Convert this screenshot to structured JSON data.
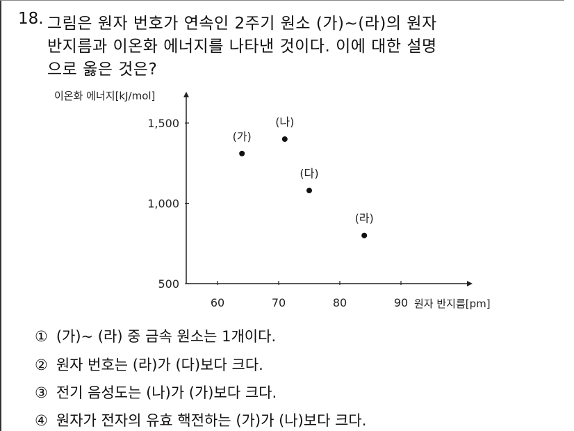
{
  "question": {
    "number": "18.",
    "lines": [
      "그림은 원자 번호가 연속인 2주기 원소 (가)~(라)의 원자",
      "반지름과 이온화 에너지를 나타낸 것이다. 이에 대한 설명",
      "으로 옳은 것은?"
    ]
  },
  "chart_data": {
    "type": "scatter",
    "xlabel": "원자 반지름[pm]",
    "ylabel": "이온화 에너지[kJ/mol]",
    "x_ticks": [
      "60",
      "70",
      "80",
      "90"
    ],
    "y_ticks": [
      "500",
      "1,000",
      "1,500"
    ],
    "xlim": [
      55,
      97
    ],
    "ylim": [
      500,
      1600
    ],
    "grid": false,
    "points": [
      {
        "label": "(가)",
        "x": 64,
        "y": 1310
      },
      {
        "label": "(나)",
        "x": 71,
        "y": 1400
      },
      {
        "label": "(다)",
        "x": 75,
        "y": 1080
      },
      {
        "label": "(라)",
        "x": 84,
        "y": 800
      }
    ]
  },
  "choices": [
    {
      "num": "①",
      "text": "(가)~ (라) 중 금속 원소는 1개이다."
    },
    {
      "num": "②",
      "text": "원자 번호는 (라)가 (다)보다 크다."
    },
    {
      "num": "③",
      "text": "전기 음성도는 (나)가 (가)보다 크다."
    },
    {
      "num": "④",
      "text": "원자가 전자의 유효 핵전하는 (가)가 (나)보다 크다."
    }
  ]
}
